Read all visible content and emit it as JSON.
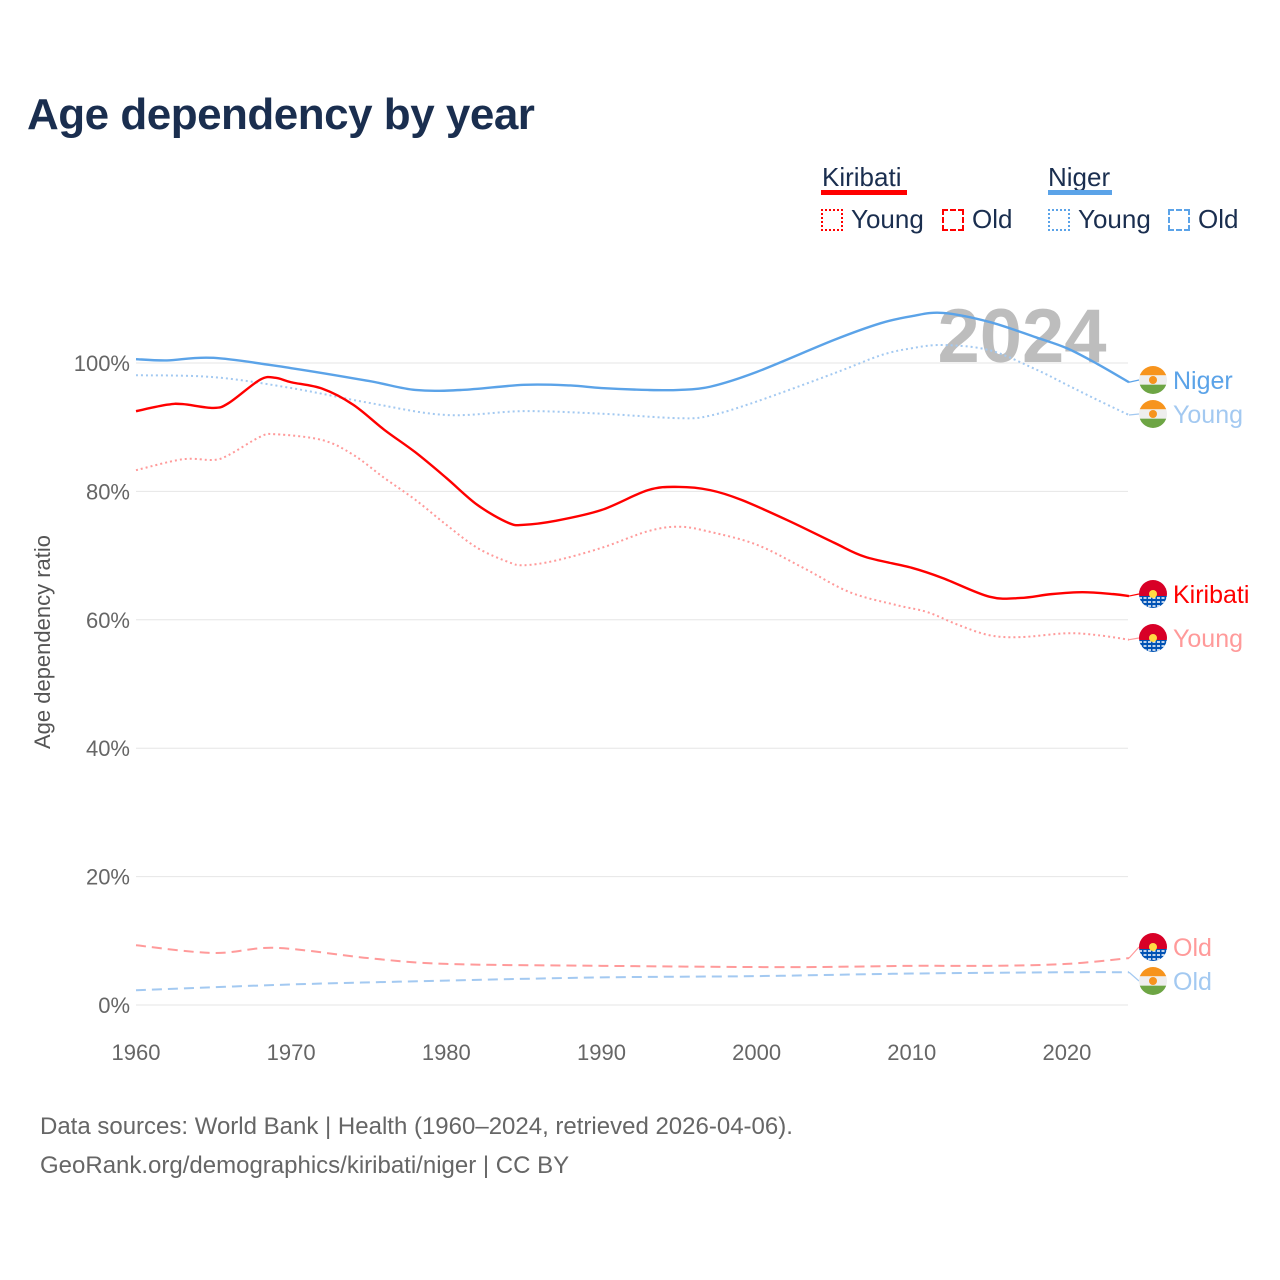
{
  "title": "Age dependency by year",
  "legend": {
    "groups": [
      {
        "name": "Kiribati",
        "color": "#ff0000",
        "items": [
          "Young",
          "Old"
        ]
      },
      {
        "name": "Niger",
        "color": "#5ba3e8",
        "items": [
          "Young",
          "Old"
        ]
      }
    ]
  },
  "watermark_year": "2024",
  "source": {
    "line1": "Data sources: World Bank | Health (1960–2024, retrieved 2026-04-06).",
    "line2": "GeoRank.org/demographics/kiribati/niger | CC BY"
  },
  "chart_data": {
    "type": "line",
    "title": "Age dependency by year",
    "xlabel": "",
    "ylabel": "Age dependency ratio",
    "xlim": [
      1960,
      2024
    ],
    "ylim": [
      0,
      110
    ],
    "xticks": [
      "1960",
      "1970",
      "1980",
      "1990",
      "2000",
      "2010",
      "2020"
    ],
    "yticks": [
      "0%",
      "20%",
      "40%",
      "60%",
      "80%",
      "100%"
    ],
    "grid": true,
    "series": [
      {
        "name": "Niger",
        "country": "Niger",
        "kind": "total",
        "label": "Niger",
        "color": "#5ba3e8",
        "dash": "solid",
        "points": [
          [
            1960,
            100.6
          ],
          [
            1962,
            100.4
          ],
          [
            1965,
            100.8
          ],
          [
            1970,
            99.2
          ],
          [
            1975,
            97.2
          ],
          [
            1978,
            95.8
          ],
          [
            1981,
            95.8
          ],
          [
            1985,
            96.6
          ],
          [
            1988,
            96.5
          ],
          [
            1990,
            96.1
          ],
          [
            1993,
            95.8
          ],
          [
            1995,
            95.8
          ],
          [
            1997,
            96.3
          ],
          [
            2000,
            98.6
          ],
          [
            2005,
            103.6
          ],
          [
            2008,
            106.2
          ],
          [
            2010,
            107.3
          ],
          [
            2012,
            107.8
          ],
          [
            2015,
            106.4
          ],
          [
            2018,
            104.0
          ],
          [
            2020,
            102.3
          ],
          [
            2022,
            99.8
          ],
          [
            2024,
            97.0
          ]
        ]
      },
      {
        "name": "Niger Young",
        "country": "Niger",
        "kind": "young",
        "label": "Young",
        "color": "#a3c9f1",
        "dash": "dotted",
        "points": [
          [
            1960,
            98.1
          ],
          [
            1965,
            97.8
          ],
          [
            1970,
            96.1
          ],
          [
            1975,
            93.8
          ],
          [
            1980,
            91.9
          ],
          [
            1985,
            92.5
          ],
          [
            1990,
            92.1
          ],
          [
            1995,
            91.4
          ],
          [
            1997,
            91.8
          ],
          [
            2000,
            94.0
          ],
          [
            2005,
            98.4
          ],
          [
            2008,
            101.2
          ],
          [
            2010,
            102.3
          ],
          [
            2012,
            102.8
          ],
          [
            2015,
            102.0
          ],
          [
            2018,
            99.0
          ],
          [
            2020,
            96.6
          ],
          [
            2022,
            94.2
          ],
          [
            2024,
            91.9
          ]
        ]
      },
      {
        "name": "Niger Old",
        "country": "Niger",
        "kind": "old",
        "label": "Old",
        "color": "#a3c9f1",
        "dash": "dashed",
        "points": [
          [
            1960,
            2.3
          ],
          [
            1970,
            3.2
          ],
          [
            1980,
            3.8
          ],
          [
            1990,
            4.3
          ],
          [
            2000,
            4.5
          ],
          [
            2010,
            4.9
          ],
          [
            2020,
            5.1
          ],
          [
            2024,
            5.1
          ]
        ]
      },
      {
        "name": "Kiribati",
        "country": "Kiribati",
        "kind": "total",
        "label": "Kiribati",
        "color": "#ff0000",
        "dash": "solid",
        "points": [
          [
            1960,
            92.5
          ],
          [
            1962,
            93.5
          ],
          [
            1963,
            93.6
          ],
          [
            1965,
            93.0
          ],
          [
            1966,
            93.8
          ],
          [
            1968,
            97.4
          ],
          [
            1969,
            97.7
          ],
          [
            1970,
            97.0
          ],
          [
            1972,
            96.0
          ],
          [
            1974,
            93.5
          ],
          [
            1976,
            89.6
          ],
          [
            1978,
            86.1
          ],
          [
            1980,
            82.1
          ],
          [
            1982,
            77.9
          ],
          [
            1984,
            75.1
          ],
          [
            1985,
            74.8
          ],
          [
            1987,
            75.4
          ],
          [
            1990,
            77.1
          ],
          [
            1993,
            80.2
          ],
          [
            1995,
            80.7
          ],
          [
            1997,
            80.2
          ],
          [
            1999,
            78.7
          ],
          [
            2002,
            75.5
          ],
          [
            2005,
            72.0
          ],
          [
            2007,
            69.8
          ],
          [
            2010,
            68.1
          ],
          [
            2012,
            66.5
          ],
          [
            2015,
            63.6
          ],
          [
            2017,
            63.4
          ],
          [
            2019,
            64.0
          ],
          [
            2021,
            64.3
          ],
          [
            2023,
            64.0
          ],
          [
            2024,
            63.7
          ]
        ]
      },
      {
        "name": "Kiribati Young",
        "country": "Kiribati",
        "kind": "young",
        "label": "Young",
        "color": "#ff9a9a",
        "dash": "dotted",
        "points": [
          [
            1960,
            83.3
          ],
          [
            1963,
            85.0
          ],
          [
            1965,
            84.9
          ],
          [
            1966,
            85.7
          ],
          [
            1968,
            88.5
          ],
          [
            1969,
            88.9
          ],
          [
            1972,
            88.0
          ],
          [
            1974,
            85.7
          ],
          [
            1976,
            82.1
          ],
          [
            1978,
            78.7
          ],
          [
            1980,
            74.8
          ],
          [
            1982,
            71.2
          ],
          [
            1984,
            69.0
          ],
          [
            1985,
            68.5
          ],
          [
            1987,
            69.2
          ],
          [
            1990,
            71.2
          ],
          [
            1993,
            73.8
          ],
          [
            1995,
            74.5
          ],
          [
            1997,
            73.7
          ],
          [
            2000,
            71.7
          ],
          [
            2003,
            68.1
          ],
          [
            2006,
            64.3
          ],
          [
            2009,
            62.3
          ],
          [
            2011,
            61.2
          ],
          [
            2013,
            59.2
          ],
          [
            2015,
            57.6
          ],
          [
            2017,
            57.3
          ],
          [
            2020,
            57.9
          ],
          [
            2022,
            57.6
          ],
          [
            2024,
            56.9
          ]
        ]
      },
      {
        "name": "Kiribati Old",
        "country": "Kiribati",
        "kind": "old",
        "label": "Old",
        "color": "#ff9a9a",
        "dash": "dashed",
        "points": [
          [
            1960,
            9.3
          ],
          [
            1965,
            8.1
          ],
          [
            1969,
            8.9
          ],
          [
            1975,
            7.3
          ],
          [
            1980,
            6.4
          ],
          [
            1990,
            6.1
          ],
          [
            2002,
            5.9
          ],
          [
            2010,
            6.1
          ],
          [
            2015,
            6.1
          ],
          [
            2020,
            6.4
          ],
          [
            2024,
            7.3
          ]
        ]
      }
    ]
  }
}
